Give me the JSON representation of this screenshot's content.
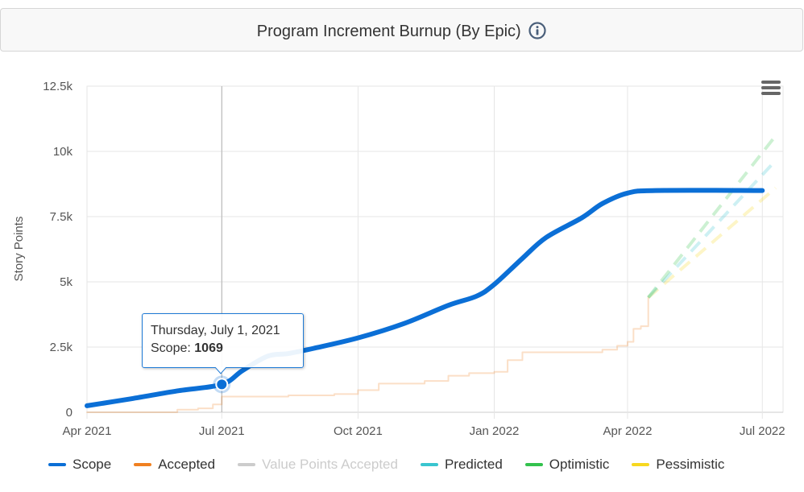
{
  "header": {
    "title": "Program Increment Burnup (By Epic)",
    "info_icon": "info-icon"
  },
  "tooltip": {
    "date": "Thursday, July 1, 2021",
    "series_label": "Scope",
    "value": "1069"
  },
  "chart_data": {
    "type": "line",
    "title": "Program Increment Burnup (By Epic)",
    "xlabel": "",
    "ylabel": "Story Points",
    "ylim": [
      0,
      12500
    ],
    "y_ticks": [
      0,
      2500,
      5000,
      7500,
      10000,
      12500
    ],
    "y_tick_labels": [
      "0",
      "2.5k",
      "5k",
      "7.5k",
      "10k",
      "12.5k"
    ],
    "x_ticks": [
      "2021-04-01",
      "2021-07-01",
      "2021-10-01",
      "2022-01-01",
      "2022-04-01",
      "2022-07-01"
    ],
    "x_tick_labels": [
      "Apr 2021",
      "Jul 2021",
      "Oct 2021",
      "Jan 2022",
      "Apr 2022",
      "Jul 2022"
    ],
    "xlim": [
      "2021-04-01",
      "2022-07-15"
    ],
    "grid": true,
    "legend_position": "bottom",
    "highlight_point": {
      "date": "2021-07-01",
      "value": 1069,
      "series": "Scope"
    },
    "series": [
      {
        "name": "Scope",
        "color": "#0b6fd6",
        "style": "solid",
        "dimmed": false,
        "points": [
          [
            "2021-04-01",
            250
          ],
          [
            "2021-05-01",
            520
          ],
          [
            "2021-06-01",
            820
          ],
          [
            "2021-07-01",
            1069
          ],
          [
            "2021-07-15",
            1600
          ],
          [
            "2021-08-01",
            2150
          ],
          [
            "2021-08-15",
            2250
          ],
          [
            "2021-09-01",
            2450
          ],
          [
            "2021-10-01",
            2850
          ],
          [
            "2021-11-01",
            3400
          ],
          [
            "2021-12-01",
            4100
          ],
          [
            "2021-12-20",
            4450
          ],
          [
            "2022-01-01",
            4900
          ],
          [
            "2022-01-20",
            5900
          ],
          [
            "2022-02-05",
            6700
          ],
          [
            "2022-03-01",
            7450
          ],
          [
            "2022-03-15",
            8000
          ],
          [
            "2022-04-01",
            8400
          ],
          [
            "2022-04-20",
            8500
          ],
          [
            "2022-07-01",
            8500
          ]
        ]
      },
      {
        "name": "Accepted",
        "color": "#f08020",
        "style": "step",
        "dimmed": true,
        "points": [
          [
            "2021-04-01",
            0
          ],
          [
            "2021-06-01",
            100
          ],
          [
            "2021-06-15",
            150
          ],
          [
            "2021-06-25",
            300
          ],
          [
            "2021-07-01",
            600
          ],
          [
            "2021-08-15",
            650
          ],
          [
            "2021-09-15",
            700
          ],
          [
            "2021-10-01",
            850
          ],
          [
            "2021-10-15",
            1100
          ],
          [
            "2021-11-15",
            1200
          ],
          [
            "2021-12-01",
            1400
          ],
          [
            "2021-12-15",
            1500
          ],
          [
            "2022-01-01",
            1550
          ],
          [
            "2022-01-10",
            2000
          ],
          [
            "2022-01-20",
            2300
          ],
          [
            "2022-03-15",
            2400
          ],
          [
            "2022-03-25",
            2550
          ],
          [
            "2022-04-01",
            2700
          ],
          [
            "2022-04-05",
            3200
          ],
          [
            "2022-04-10",
            3300
          ],
          [
            "2022-04-15",
            4400
          ]
        ]
      },
      {
        "name": "Value Points Accepted",
        "color": "#cccccc",
        "style": "solid",
        "dimmed": true,
        "points": []
      },
      {
        "name": "Predicted",
        "color": "#39c5cf",
        "style": "dashed",
        "dimmed": true,
        "points": [
          [
            "2022-04-15",
            4400
          ],
          [
            "2022-07-10",
            9650
          ]
        ]
      },
      {
        "name": "Optimistic",
        "color": "#33c24d",
        "style": "dashed",
        "dimmed": true,
        "points": [
          [
            "2022-04-15",
            4400
          ],
          [
            "2022-07-10",
            10600
          ]
        ]
      },
      {
        "name": "Pessimistic",
        "color": "#f7d81f",
        "style": "dashed",
        "dimmed": true,
        "points": [
          [
            "2022-04-15",
            4400
          ],
          [
            "2022-07-10",
            8600
          ]
        ]
      }
    ]
  }
}
